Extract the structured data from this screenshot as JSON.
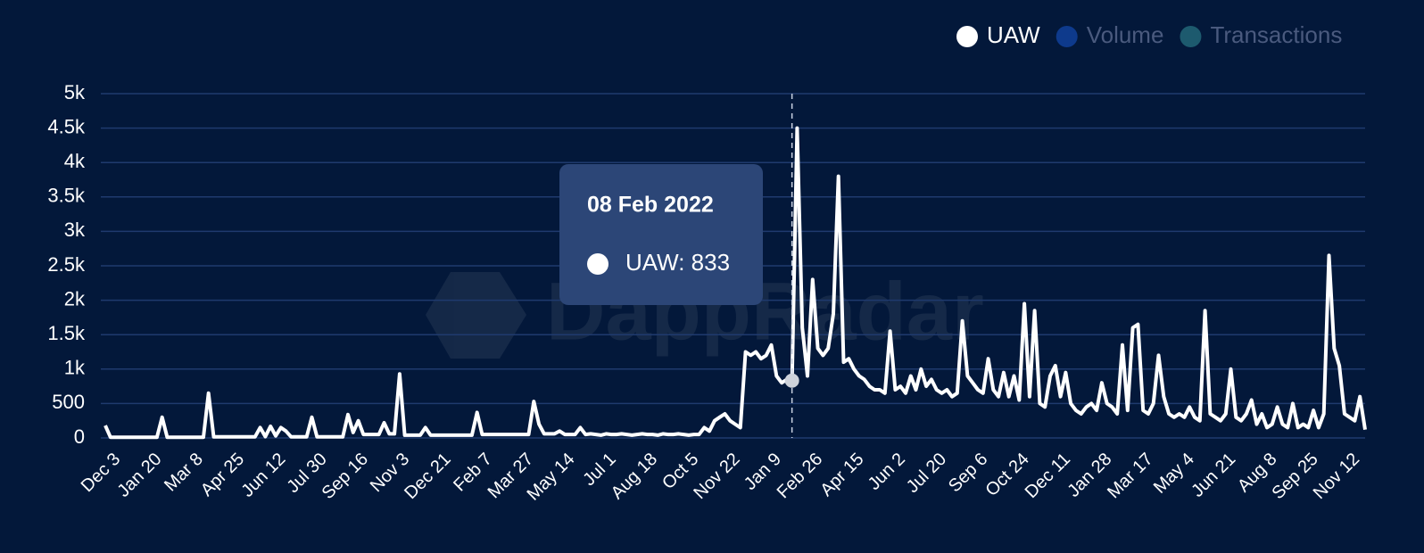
{
  "chart_data": {
    "type": "line",
    "categories": [
      "Dec 3",
      null,
      null,
      null,
      null,
      null,
      null,
      null,
      "Jan 20",
      null,
      null,
      null,
      null,
      null,
      null,
      null,
      "Mar 8",
      null,
      null,
      null,
      null,
      null,
      null,
      null,
      "Apr 25",
      null,
      null,
      null,
      null,
      null,
      null,
      null,
      "Jun 12",
      null,
      null,
      null,
      null,
      null,
      null,
      null,
      "Jul 30",
      null,
      null,
      null,
      null,
      null,
      null,
      null,
      "Sep 16",
      null,
      null,
      null,
      null,
      null,
      null,
      null,
      "Nov 3",
      null,
      null,
      null,
      null,
      null,
      null,
      null,
      "Dec 21",
      null,
      null,
      null,
      null,
      null,
      null,
      null,
      "Feb 7",
      null,
      null,
      null,
      null,
      null,
      null,
      null,
      "Mar 27",
      null,
      null,
      null,
      null,
      null,
      null,
      null,
      "May 14",
      null,
      null,
      null,
      null,
      null,
      null,
      null,
      "Jul 1",
      null,
      null,
      null,
      null,
      null,
      null,
      null,
      "Aug 18",
      null,
      null,
      null,
      null,
      null,
      null,
      null,
      "Oct 5",
      null,
      null,
      null,
      null,
      null,
      null,
      null,
      "Nov 22",
      null,
      null,
      null,
      null,
      null,
      null,
      null,
      "Jan 9",
      null,
      null,
      null,
      null,
      null,
      null,
      null,
      "Feb 26",
      null,
      null,
      null,
      null,
      null,
      null,
      null,
      "Apr 15",
      null,
      null,
      null,
      null,
      null,
      null,
      null,
      "Jun 2",
      null,
      null,
      null,
      null,
      null,
      null,
      null,
      "Jul 20",
      null,
      null,
      null,
      null,
      null,
      null,
      null,
      "Sep 6",
      null,
      null,
      null,
      null,
      null,
      null,
      null,
      "Oct 24",
      null,
      null,
      null,
      null,
      null,
      null,
      null,
      "Dec 11",
      null,
      null,
      null,
      null,
      null,
      null,
      null,
      "Jan 28",
      null,
      null,
      null,
      null,
      null,
      null,
      null,
      "Mar 17",
      null,
      null,
      null,
      null,
      null,
      null,
      null,
      "May 4",
      null,
      null,
      null,
      null,
      null,
      null,
      null,
      "Jun 21",
      null,
      null,
      null,
      null,
      null,
      null,
      null,
      "Aug 8",
      null,
      null,
      null,
      null,
      null,
      null,
      null,
      "Sep 25",
      null,
      null,
      null,
      null,
      null,
      null,
      null,
      "Nov 12",
      null,
      null,
      null,
      null
    ],
    "series": [
      {
        "name": "UAW",
        "color": "#ffffff",
        "values": [
          180,
          10,
          10,
          10,
          10,
          10,
          10,
          10,
          10,
          10,
          10,
          300,
          10,
          10,
          10,
          10,
          10,
          10,
          10,
          10,
          650,
          15,
          15,
          15,
          15,
          15,
          15,
          15,
          15,
          15,
          150,
          20,
          170,
          30,
          150,
          100,
          15,
          15,
          15,
          15,
          300,
          15,
          15,
          15,
          15,
          15,
          15,
          340,
          80,
          250,
          50,
          50,
          50,
          50,
          220,
          60,
          60,
          930,
          40,
          40,
          40,
          40,
          150,
          40,
          40,
          40,
          40,
          40,
          40,
          40,
          40,
          40,
          370,
          50,
          50,
          50,
          50,
          50,
          50,
          50,
          50,
          50,
          50,
          530,
          200,
          60,
          60,
          60,
          100,
          50,
          50,
          50,
          150,
          50,
          60,
          50,
          40,
          60,
          50,
          50,
          60,
          50,
          40,
          50,
          60,
          50,
          50,
          40,
          60,
          50,
          50,
          60,
          50,
          40,
          50,
          50,
          150,
          100,
          250,
          300,
          350,
          250,
          200,
          150,
          1250,
          1200,
          1250,
          1150,
          1200,
          1350,
          900,
          800,
          850,
          833,
          4500,
          1600,
          900,
          2300,
          1300,
          1200,
          1300,
          1800,
          3800,
          1100,
          1150,
          1000,
          900,
          850,
          750,
          700,
          700,
          650,
          1550,
          700,
          750,
          650,
          900,
          700,
          1000,
          750,
          850,
          700,
          650,
          700,
          600,
          650,
          1700,
          900,
          800,
          700,
          650,
          1150,
          700,
          600,
          950,
          600,
          900,
          550,
          1950,
          600,
          1850,
          500,
          450,
          900,
          1050,
          600,
          950,
          500,
          400,
          350,
          450,
          500,
          400,
          800,
          500,
          450,
          350,
          1350,
          400,
          1600,
          1650,
          400,
          350,
          500,
          1200,
          600,
          350,
          300,
          350,
          300,
          450,
          300,
          250,
          1850,
          350,
          300,
          250,
          350,
          1000,
          300,
          250,
          350,
          550,
          200,
          350,
          150,
          200,
          450,
          200,
          150,
          500,
          150,
          200,
          150,
          400,
          150,
          350,
          2650,
          1300,
          1050,
          350,
          300,
          250,
          600,
          120
        ]
      }
    ],
    "legend": [
      {
        "name": "UAW",
        "color": "#ffffff",
        "text_color": "#ffffff"
      },
      {
        "name": "Volume",
        "color": "#0e3a8c",
        "text_color": "#4a5a7e"
      },
      {
        "name": "Transactions",
        "color": "#1d5a6e",
        "text_color": "#4a5a7e"
      }
    ],
    "ylim": [
      0,
      5000
    ],
    "yticks": [
      0,
      500,
      {
        "value": 1000,
        "label": "1k"
      },
      {
        "value": 1500,
        "label": "1.5k"
      },
      {
        "value": 2000,
        "label": "2k"
      },
      {
        "value": 2500,
        "label": "2.5k"
      },
      {
        "value": 3000,
        "label": "3k"
      },
      {
        "value": 3500,
        "label": "3.5k"
      },
      {
        "value": 4000,
        "label": "4k"
      },
      {
        "value": 4500,
        "label": "4.5k"
      },
      {
        "value": 5000,
        "label": "5k"
      }
    ],
    "grid": true,
    "watermark": "DappRadar",
    "tooltip": {
      "title": "08 Feb 2022",
      "label": "UAW: 833"
    }
  }
}
